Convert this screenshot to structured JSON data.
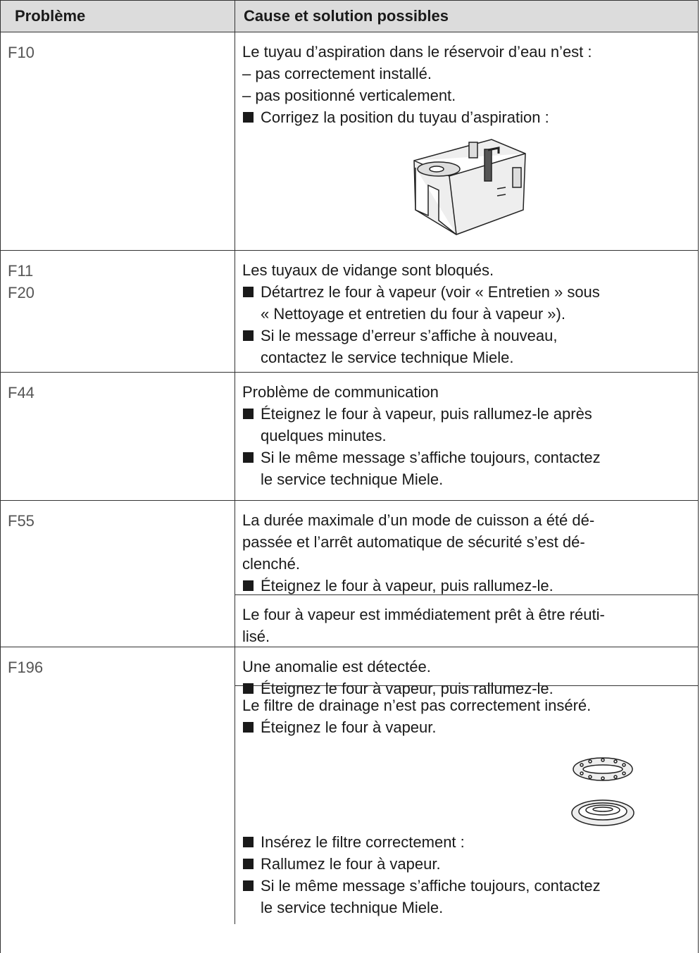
{
  "header": {
    "col1": "Problème",
    "col2": "Cause et solution possibles"
  },
  "rows": [
    {
      "codes": [
        "F10"
      ],
      "sections": [
        [
          {
            "p": "Le tuyau d’aspiration dans le réservoir d’eau n’est :"
          },
          {
            "p": "– pas correctement installé."
          },
          {
            "p": "– pas positionné verticalement."
          },
          {
            "li": "Corrigez la position du tuyau d’aspiration :"
          }
        ]
      ]
    },
    {
      "codes": [
        "F11",
        "F20"
      ],
      "sections": [
        [
          {
            "p": "Les tuyaux de vidange sont bloqués."
          },
          {
            "li": "Détartrez le four à vapeur (voir « Entretien » sous\n« Nettoyage et entretien du four à vapeur »)."
          },
          {
            "li": "Si le message d’erreur s’affiche à nouveau,\ncontactez le service technique Miele."
          }
        ]
      ]
    },
    {
      "codes": [
        "F44"
      ],
      "sections": [
        [
          {
            "p": "Problème de communication"
          },
          {
            "li": "Éteignez le four à vapeur, puis rallumez-le après\nquelques minutes."
          },
          {
            "li": "Si le même message s’affiche toujours, contactez\nle service technique Miele."
          }
        ]
      ]
    },
    {
      "codes": [
        "F55"
      ],
      "sections": [
        [
          {
            "p": "La durée maximale d’un mode de cuisson a été dé-\npassée et l’arrêt automatique de sécurité s’est dé-\nclenché."
          },
          {
            "li": "Éteignez le four à vapeur, puis rallumez-le."
          }
        ],
        [
          {
            "p": "Le four à vapeur est immédiatement prêt à être réuti-\nlisé."
          }
        ]
      ]
    },
    {
      "codes": [
        "F196"
      ],
      "sections": [
        [
          {
            "p": "Une anomalie est détectée."
          },
          {
            "li": "Éteignez le four à vapeur, puis rallumez-le."
          }
        ],
        [
          {
            "p": "Le filtre de drainage n’est pas correctement inséré."
          },
          {
            "li": "Éteignez le four à vapeur."
          },
          {
            "li": "Insérez le filtre correctement :"
          },
          {
            "li": "Rallumez le four à vapeur."
          },
          {
            "li": "Si le même message s’affiche toujours, contactez\nle service technique Miele."
          }
        ]
      ]
    }
  ]
}
